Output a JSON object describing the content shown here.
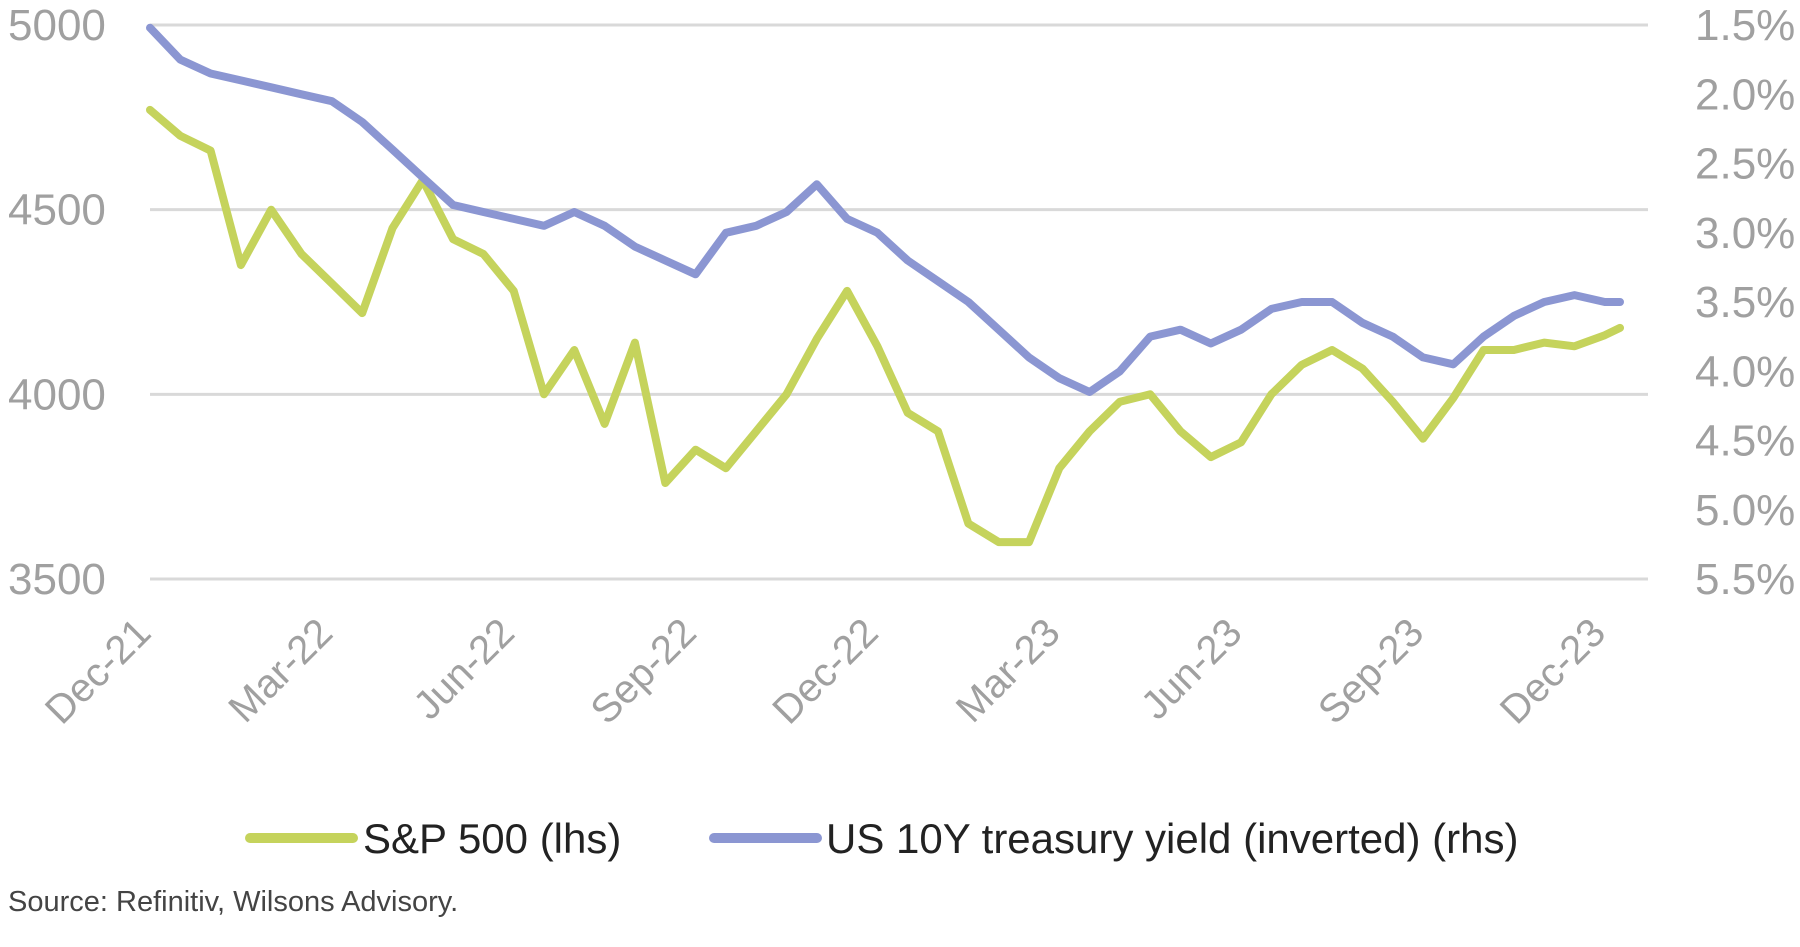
{
  "chart_data": {
    "type": "line",
    "x_tick_labels": [
      "Dec-21",
      "Mar-22",
      "Jun-22",
      "Sep-22",
      "Dec-22",
      "Mar-23",
      "Jun-23",
      "Sep-23",
      "Dec-23"
    ],
    "left_axis": {
      "ticks": [
        "5000",
        "4500",
        "4000",
        "3500"
      ],
      "ylim": [
        3500,
        5000
      ]
    },
    "right_axis": {
      "ticks": [
        "1.5%",
        "2.0%",
        "2.5%",
        "3.0%",
        "3.5%",
        "4.0%",
        "4.5%",
        "5.0%",
        "5.5%"
      ],
      "ylim": [
        1.5,
        5.5
      ],
      "inverted": true
    },
    "grid": true,
    "legend_position": "bottom",
    "x_months": [
      0,
      0.5,
      1,
      1.5,
      2,
      2.5,
      3,
      3.5,
      4,
      4.5,
      5,
      5.5,
      6,
      6.5,
      7,
      7.5,
      8,
      8.5,
      9,
      9.5,
      10,
      10.5,
      11,
      11.5,
      12,
      12.5,
      13,
      13.5,
      14,
      14.5,
      15,
      15.5,
      16,
      16.5,
      17,
      17.5,
      18,
      18.5,
      19,
      19.5,
      20,
      20.5,
      21,
      21.5,
      22,
      22.5,
      23,
      23.5,
      24,
      24.25
    ],
    "series": [
      {
        "name": "S&P 500 (lhs)",
        "axis": "left",
        "color": "#c5d35c",
        "values": [
          4770,
          4700,
          4660,
          4350,
          4500,
          4380,
          4300,
          4220,
          4450,
          4580,
          4420,
          4380,
          4280,
          4000,
          4120,
          3920,
          4140,
          3760,
          3850,
          3800,
          3900,
          4000,
          4150,
          4280,
          4130,
          3950,
          3900,
          3650,
          3600,
          3600,
          3800,
          3900,
          3980,
          4000,
          3900,
          3830,
          3870,
          4000,
          4080,
          4120,
          4070,
          3980,
          3880,
          3990,
          4120,
          4120,
          4140,
          4130,
          4160,
          4180
        ]
      },
      {
        "name": "US 10Y treasury yield (inverted) (rhs)",
        "axis": "right",
        "color": "#8b96d2",
        "values": [
          1.52,
          1.75,
          1.85,
          1.9,
          1.95,
          2.0,
          2.05,
          2.2,
          2.4,
          2.6,
          2.8,
          2.85,
          2.9,
          2.95,
          2.85,
          2.95,
          3.1,
          3.2,
          3.3,
          3.0,
          2.95,
          2.85,
          2.65,
          2.9,
          3.0,
          3.2,
          3.35,
          3.5,
          3.7,
          3.9,
          4.05,
          4.15,
          4.0,
          3.75,
          3.7,
          3.8,
          3.7,
          3.55,
          3.5,
          3.5,
          3.65,
          3.75,
          3.9,
          3.95,
          3.75,
          3.6,
          3.5,
          3.45,
          3.5,
          3.5
        ]
      }
    ]
  },
  "legend": {
    "items": [
      {
        "label": "S&P 500 (lhs)",
        "color": "#c5d35c"
      },
      {
        "label": "US 10Y treasury yield (inverted) (rhs)",
        "color": "#8b96d2"
      }
    ]
  },
  "source_note": "Source: Refinitiv, Wilsons Advisory."
}
